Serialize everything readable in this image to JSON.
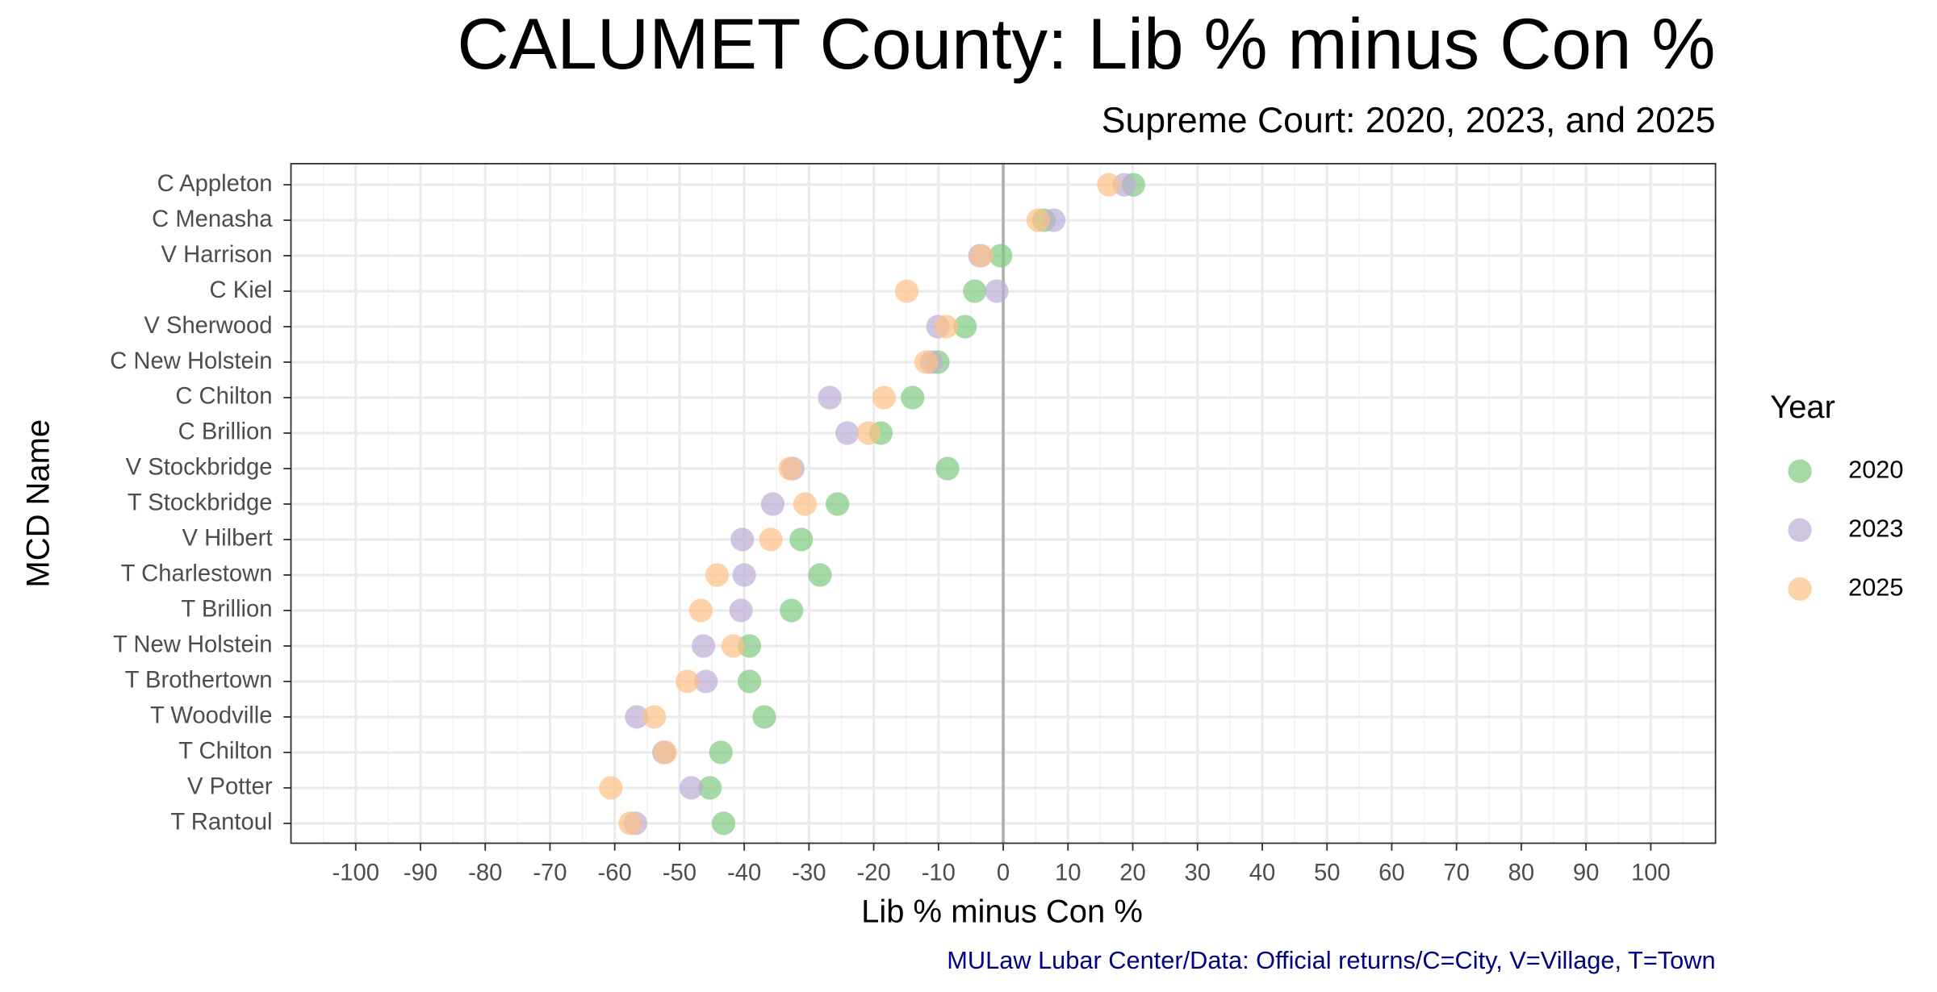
{
  "chart_data": {
    "type": "dot",
    "title": "CALUMET County: Lib % minus Con %",
    "subtitle": "Supreme Court: 2020, 2023, and 2025",
    "x_label": "Lib % minus Con %",
    "y_label": "MCD Name",
    "legend_title": "Year",
    "caption": "MULaw Lubar Center/Data: Official returns/C=City, V=Village, T=Town",
    "categories": [
      "C Appleton",
      "C Menasha",
      "V Harrison",
      "C Kiel",
      "V Sherwood",
      "C New Holstein",
      "C Chilton",
      "C Brillion",
      "V Stockbridge",
      "T Stockbridge",
      "V Hilbert",
      "T Charlestown",
      "T Brillion",
      "T New Holstein",
      "T Brothertown",
      "T Woodville",
      "T Chilton",
      "V Potter",
      "T Rantoul"
    ],
    "series": [
      {
        "name": "2020",
        "color": "#7fc97f",
        "values": [
          20.1,
          6.3,
          -0.4,
          -4.4,
          -5.9,
          -10.1,
          -14.0,
          -18.9,
          -8.6,
          -25.6,
          -31.2,
          -28.3,
          -32.7,
          -39.2,
          -39.2,
          -36.9,
          -43.6,
          -45.3,
          -43.2
        ]
      },
      {
        "name": "2023",
        "color": "#beaed4",
        "values": [
          18.7,
          7.8,
          -3.6,
          -1.0,
          -10.1,
          -11.1,
          -26.8,
          -24.1,
          -32.5,
          -35.6,
          -40.3,
          -40.0,
          -40.5,
          -46.3,
          -45.9,
          -56.6,
          -52.4,
          -48.2,
          -56.8
        ]
      },
      {
        "name": "2025",
        "color": "#fdc086",
        "values": [
          16.3,
          5.4,
          -3.4,
          -14.9,
          -8.8,
          -11.9,
          -18.4,
          -20.8,
          -32.9,
          -30.6,
          -35.9,
          -44.2,
          -46.7,
          -41.7,
          -48.8,
          -53.9,
          -52.2,
          -60.6,
          -57.6
        ]
      }
    ],
    "xlim": [
      -110,
      110
    ],
    "xticks": [
      -100,
      -90,
      -80,
      -70,
      -60,
      -50,
      -40,
      -30,
      -20,
      -10,
      0,
      10,
      20,
      30,
      40,
      50,
      60,
      70,
      80,
      90,
      100
    ],
    "grid": true,
    "legend_position": "right"
  }
}
